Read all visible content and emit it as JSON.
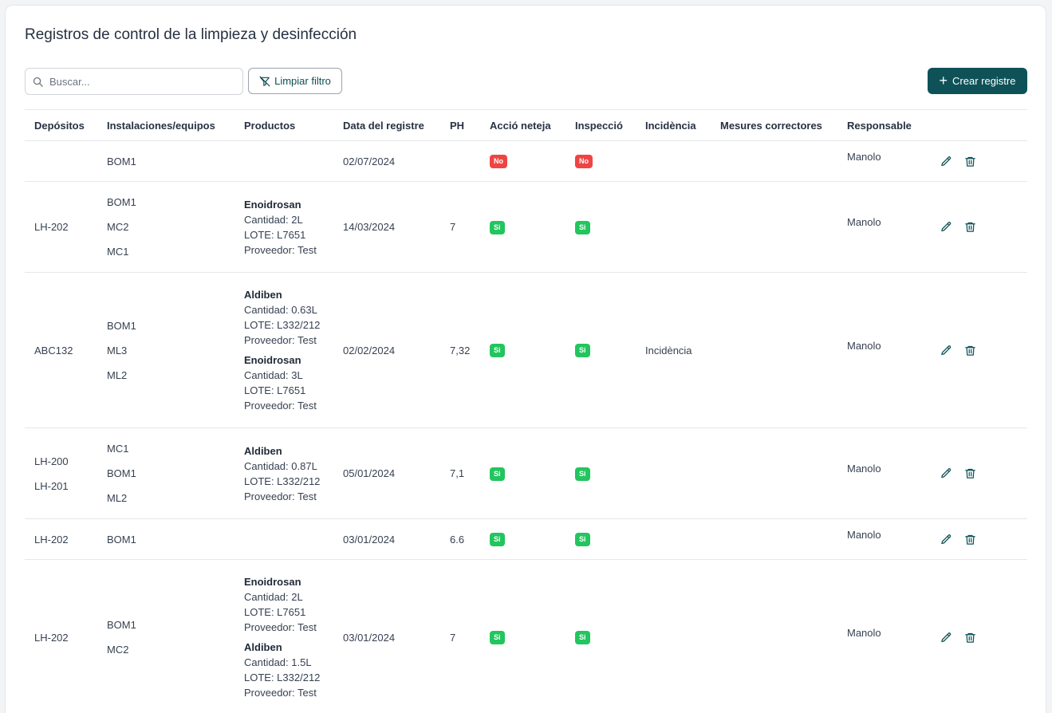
{
  "page": {
    "title": "Registros de control de la limpieza y desinfección"
  },
  "toolbar": {
    "search_placeholder": "Buscar...",
    "search_value": "",
    "clear_filter_label": "Limpiar filtro",
    "create_label": "Crear registre"
  },
  "colors": {
    "primary": "#0e5257",
    "badge_yes": "#22c55e",
    "badge_no": "#ef4444"
  },
  "icons": {
    "search": "search-icon",
    "filter_clear": "filter-off-icon",
    "add": "plus-icon",
    "edit": "pencil-icon",
    "delete": "trash-icon"
  },
  "table": {
    "columns": [
      "Depósitos",
      "Instalaciones/equipos",
      "Productos",
      "Data del registre",
      "PH",
      "Acció neteja",
      "Inspecció",
      "Incidència",
      "Mesures correctores",
      "Responsable"
    ],
    "rows": [
      {
        "depositos": [],
        "instalaciones": [
          "BOM1"
        ],
        "productos": [],
        "fecha": "02/07/2024",
        "ph": "",
        "accio": "No",
        "inspeccio": "No",
        "incidencia": "",
        "mesures": "",
        "responsable": "Manolo"
      },
      {
        "depositos": [
          "LH-202"
        ],
        "instalaciones": [
          "BOM1",
          "MC2",
          "MC1"
        ],
        "productos": [
          {
            "name": "Enoidrosan",
            "cantidad": "Cantidad: 2L",
            "lote": "LOTE: L7651",
            "proveedor": "Proveedor: Test"
          }
        ],
        "fecha": "14/03/2024",
        "ph": "7",
        "accio": "Si",
        "inspeccio": "Si",
        "incidencia": "",
        "mesures": "",
        "responsable": "Manolo"
      },
      {
        "depositos": [
          "ABC132"
        ],
        "instalaciones": [
          "BOM1",
          "ML3",
          "ML2"
        ],
        "productos": [
          {
            "name": "Aldiben",
            "cantidad": "Cantidad: 0.63L",
            "lote": "LOTE: L332/212",
            "proveedor": "Proveedor: Test"
          },
          {
            "name": "Enoidrosan",
            "cantidad": "Cantidad: 3L",
            "lote": "LOTE: L7651",
            "proveedor": "Proveedor: Test"
          }
        ],
        "fecha": "02/02/2024",
        "ph": "7,32",
        "accio": "Si",
        "inspeccio": "Si",
        "incidencia": "Incidència",
        "mesures": "",
        "responsable": "Manolo"
      },
      {
        "depositos": [
          "LH-200",
          "LH-201"
        ],
        "instalaciones": [
          "MC1",
          "BOM1",
          "ML2"
        ],
        "productos": [
          {
            "name": "Aldiben",
            "cantidad": "Cantidad: 0.87L",
            "lote": "LOTE: L332/212",
            "proveedor": "Proveedor: Test"
          }
        ],
        "fecha": "05/01/2024",
        "ph": "7,1",
        "accio": "Si",
        "inspeccio": "Si",
        "incidencia": "",
        "mesures": "",
        "responsable": "Manolo"
      },
      {
        "depositos": [
          "LH-202"
        ],
        "instalaciones": [
          "BOM1"
        ],
        "productos": [],
        "fecha": "03/01/2024",
        "ph": "6.6",
        "accio": "Si",
        "inspeccio": "Si",
        "incidencia": "",
        "mesures": "",
        "responsable": "Manolo"
      },
      {
        "depositos": [
          "LH-202"
        ],
        "instalaciones": [
          "BOM1",
          "MC2"
        ],
        "productos": [
          {
            "name": "Enoidrosan",
            "cantidad": "Cantidad: 2L",
            "lote": "LOTE: L7651",
            "proveedor": "Proveedor: Test"
          },
          {
            "name": "Aldiben",
            "cantidad": "Cantidad: 1.5L",
            "lote": "LOTE: L332/212",
            "proveedor": "Proveedor: Test"
          }
        ],
        "fecha": "03/01/2024",
        "ph": "7",
        "accio": "Si",
        "inspeccio": "Si",
        "incidencia": "",
        "mesures": "",
        "responsable": "Manolo"
      }
    ]
  }
}
